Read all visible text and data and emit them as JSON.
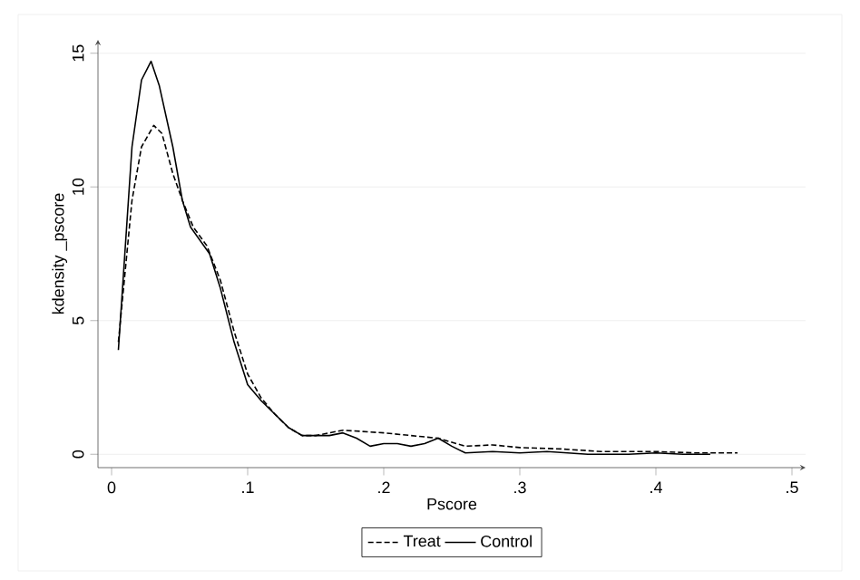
{
  "chart_data": {
    "type": "line",
    "xlabel": "Pscore",
    "ylabel": "kdensity _pscore",
    "xlim": [
      -0.01,
      0.51
    ],
    "ylim": [
      -0.5,
      15.5
    ],
    "xticks": [
      {
        "value": 0,
        "label": "0"
      },
      {
        "value": 0.1,
        "label": ".1"
      },
      {
        "value": 0.2,
        "label": ".2"
      },
      {
        "value": 0.3,
        "label": ".3"
      },
      {
        "value": 0.4,
        "label": ".4"
      },
      {
        "value": 0.5,
        "label": ".5"
      }
    ],
    "yticks": [
      0,
      5,
      10,
      15
    ],
    "grid": "y",
    "legend": "bottom",
    "marker": "none",
    "series": [
      {
        "name": "Treat",
        "color": "#000000",
        "line_style": "dashed",
        "x": [
          0.005,
          0.015,
          0.022,
          0.031,
          0.037,
          0.045,
          0.052,
          0.06,
          0.07,
          0.08,
          0.09,
          0.1,
          0.11,
          0.12,
          0.13,
          0.14,
          0.15,
          0.17,
          0.2,
          0.22,
          0.24,
          0.26,
          0.28,
          0.3,
          0.33,
          0.36,
          0.4,
          0.43,
          0.46
        ],
        "values": [
          4.2,
          9.5,
          11.5,
          12.3,
          12.0,
          10.5,
          9.5,
          8.5,
          7.8,
          6.5,
          4.6,
          3.0,
          2.1,
          1.5,
          1.0,
          0.7,
          0.7,
          0.9,
          0.8,
          0.7,
          0.6,
          0.3,
          0.35,
          0.25,
          0.2,
          0.1,
          0.1,
          0.05,
          0.05
        ]
      },
      {
        "name": "Control",
        "color": "#000000",
        "line_style": "solid",
        "x": [
          0.005,
          0.015,
          0.022,
          0.029,
          0.035,
          0.045,
          0.052,
          0.058,
          0.065,
          0.072,
          0.08,
          0.09,
          0.1,
          0.11,
          0.12,
          0.13,
          0.14,
          0.15,
          0.16,
          0.17,
          0.18,
          0.19,
          0.2,
          0.21,
          0.22,
          0.23,
          0.24,
          0.25,
          0.26,
          0.28,
          0.3,
          0.32,
          0.35,
          0.38,
          0.4,
          0.42,
          0.44
        ],
        "values": [
          3.9,
          11.5,
          14.0,
          14.7,
          13.8,
          11.5,
          9.5,
          8.5,
          8.0,
          7.5,
          6.2,
          4.2,
          2.6,
          2.0,
          1.5,
          1.0,
          0.7,
          0.7,
          0.7,
          0.8,
          0.6,
          0.3,
          0.4,
          0.4,
          0.3,
          0.4,
          0.6,
          0.3,
          0.05,
          0.1,
          0.05,
          0.1,
          0.0,
          0.0,
          0.05,
          0.0,
          0.0
        ]
      }
    ]
  }
}
